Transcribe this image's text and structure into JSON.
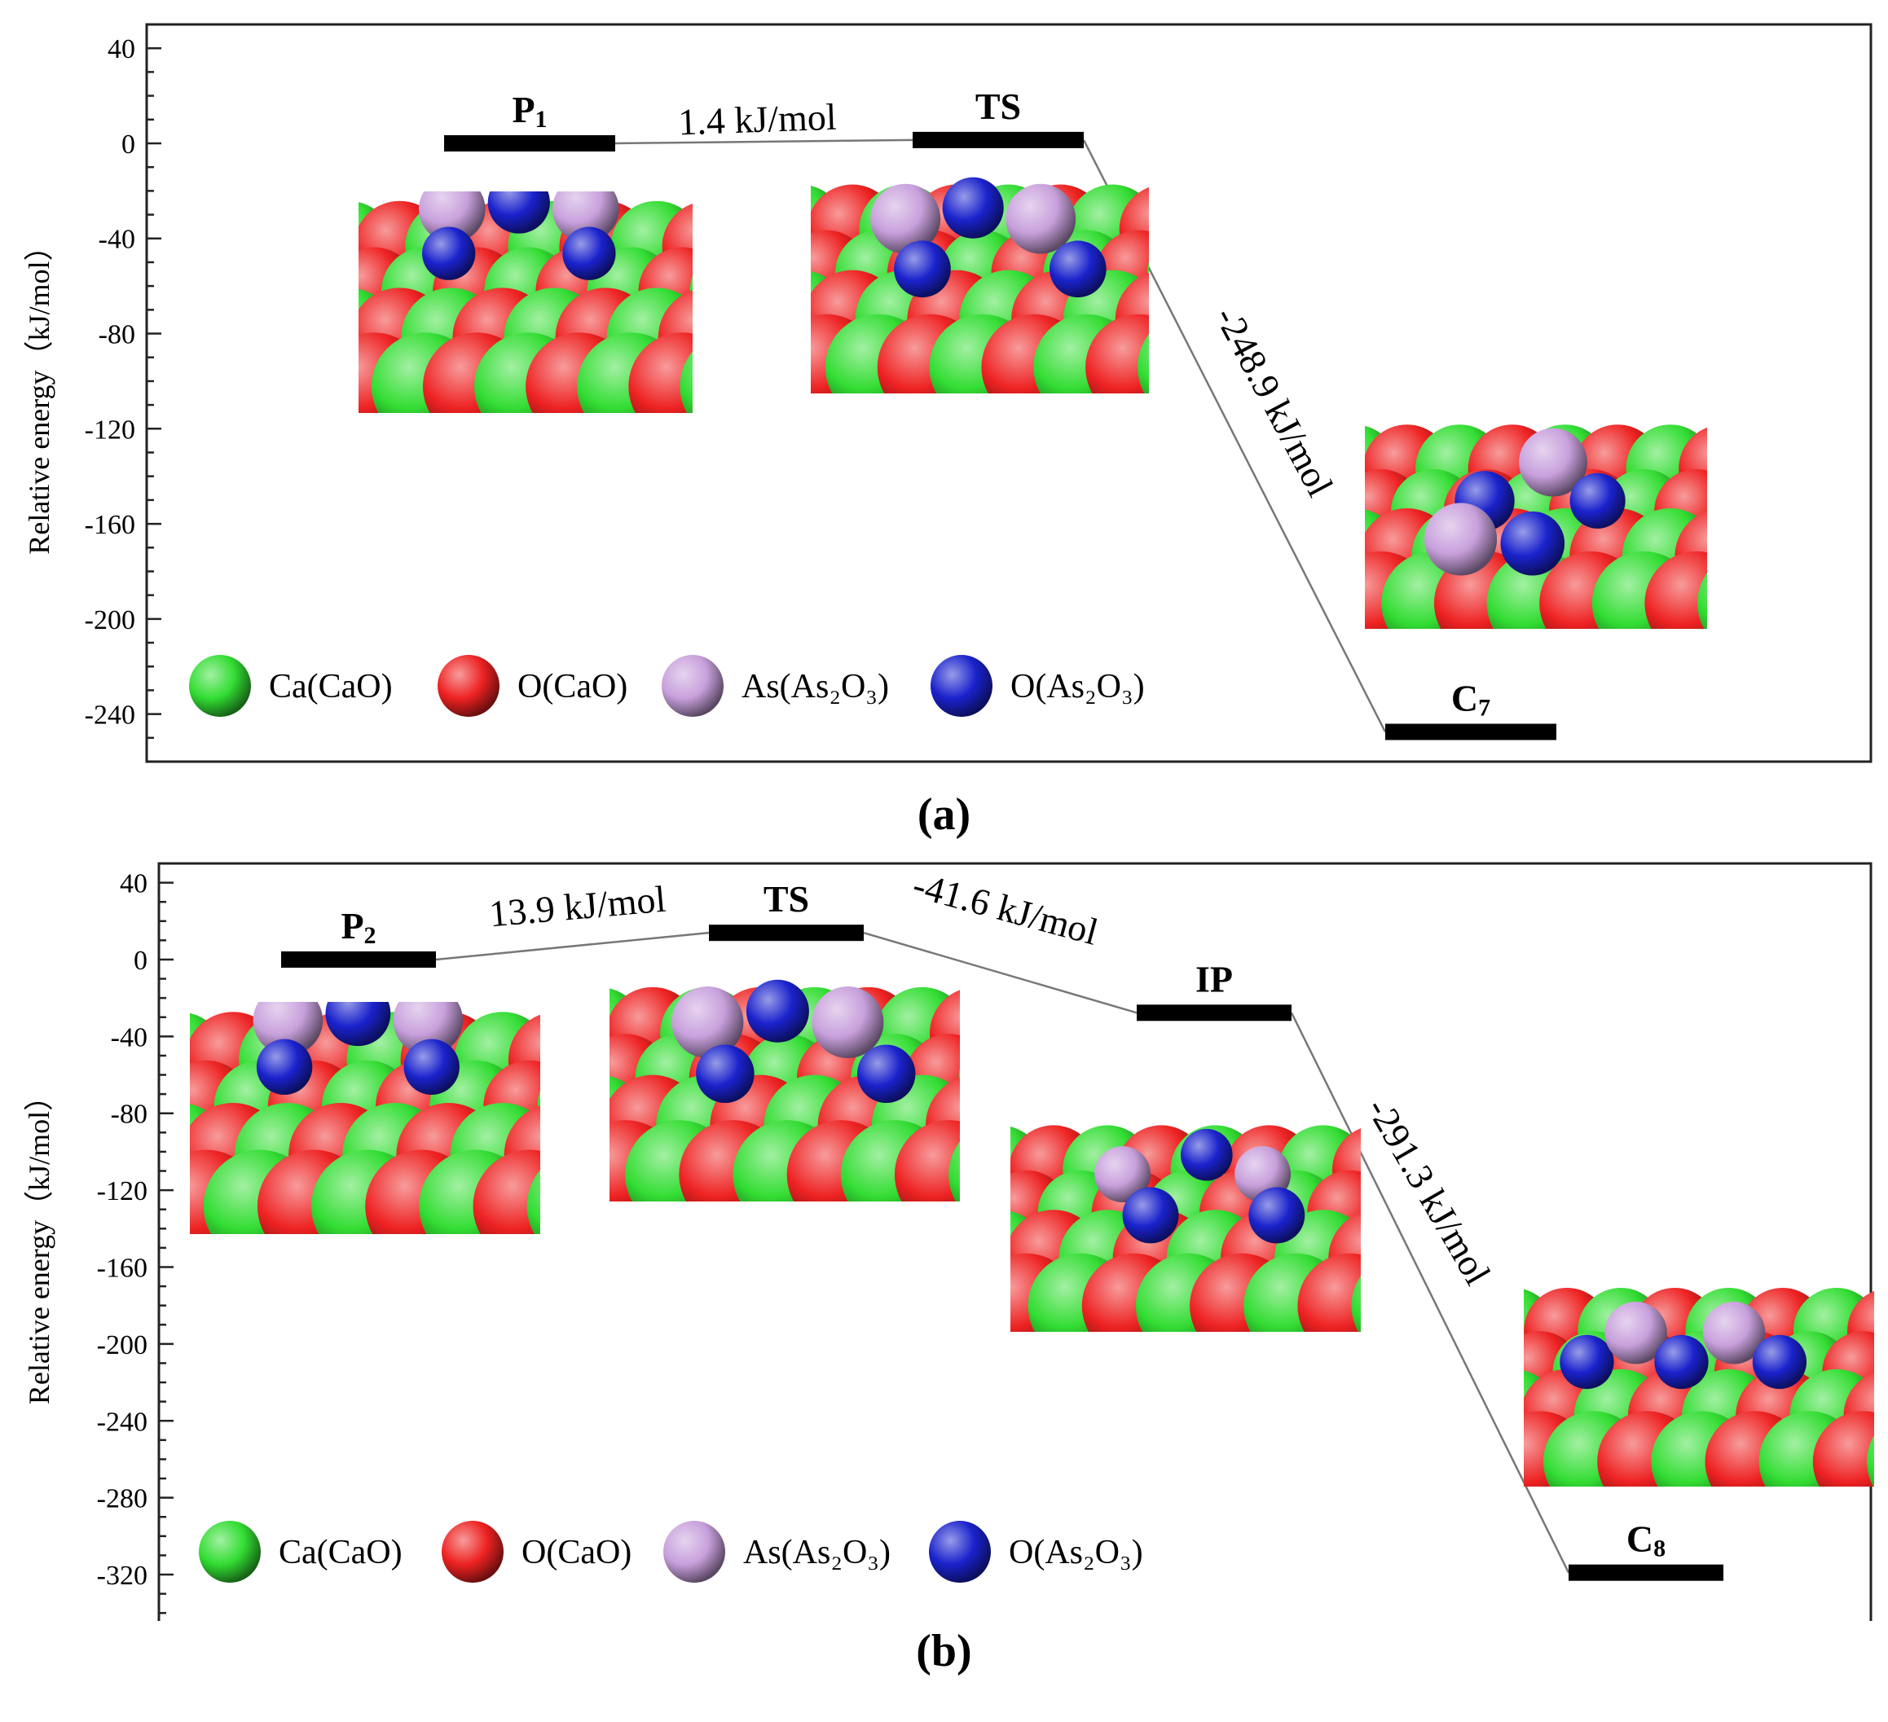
{
  "colors": {
    "ca": "#33dd33",
    "o_cao": "#ee2222",
    "as": "#c8a0dc",
    "o_as": "#1a22cc",
    "bar": "#000000",
    "connector": "#777777"
  },
  "legend": [
    {
      "label": "Ca(CaO)",
      "color_key": "ca"
    },
    {
      "label": "O(CaO)",
      "color_key": "o_cao"
    },
    {
      "label": "As(As₂O₃)",
      "color_key": "as"
    },
    {
      "label": "O(As₂O₃)",
      "color_key": "o_as"
    }
  ],
  "chart_data": [
    {
      "type": "energy-profile",
      "caption": "(a)",
      "ylabel": "Relative energy（kJ/mol）",
      "ylim": [
        -260,
        50
      ],
      "yticks": [
        40,
        0,
        -40,
        -80,
        -120,
        -160,
        -200,
        -240
      ],
      "states": [
        {
          "label": "P",
          "sub": "1",
          "energy": 0
        },
        {
          "label": "TS",
          "sub": "",
          "energy": 1.4
        },
        {
          "label": "C",
          "sub": "7",
          "energy": -247.5
        }
      ],
      "steps": [
        {
          "from": 0,
          "to": 1,
          "label": "1.4 kJ/mol"
        },
        {
          "from": 1,
          "to": 2,
          "label": "-248.9 kJ/mol"
        }
      ]
    },
    {
      "type": "energy-profile",
      "caption": "(b)",
      "ylabel": "Relative energy（kJ/mol）",
      "ylim": [
        -345,
        50
      ],
      "yticks": [
        40,
        0,
        -40,
        -80,
        -120,
        -160,
        -200,
        -240,
        -280,
        -320
      ],
      "states": [
        {
          "label": "P",
          "sub": "2",
          "energy": 0
        },
        {
          "label": "TS",
          "sub": "",
          "energy": 13.9
        },
        {
          "label": "IP",
          "sub": "",
          "energy": -27.7
        },
        {
          "label": "C",
          "sub": "8",
          "energy": -319
        }
      ],
      "steps": [
        {
          "from": 0,
          "to": 1,
          "label": "13.9 kJ/mol"
        },
        {
          "from": 1,
          "to": 2,
          "label": "-41.6 kJ/mol"
        },
        {
          "from": 2,
          "to": 3,
          "label": "-291.3 kJ/mol"
        }
      ]
    }
  ]
}
